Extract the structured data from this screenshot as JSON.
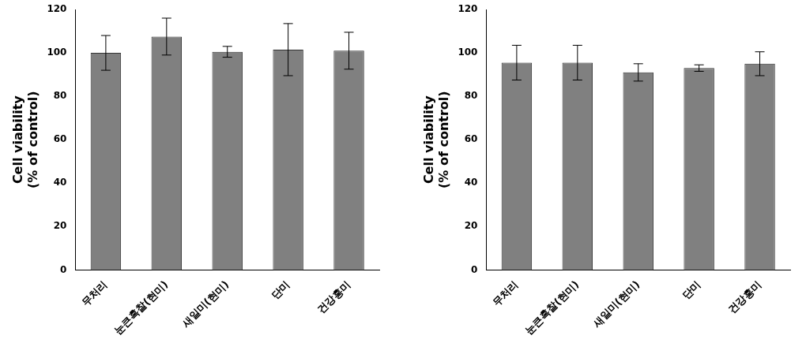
{
  "chart_data": [
    {
      "type": "bar",
      "ylabel": "Cell viability\n(% of control)",
      "categories": [
        "무처리",
        "눈큰흑찰(현미)",
        "새일미(현미)",
        "단미",
        "건강홍미"
      ],
      "values": [
        100,
        107.5,
        100.5,
        101.5,
        101
      ],
      "errors": [
        8,
        8.5,
        2.5,
        12,
        8.5
      ],
      "color": "#808080",
      "ylim": [
        0,
        120
      ],
      "yticks": [
        0,
        20,
        40,
        60,
        80,
        100,
        120
      ],
      "grid": false
    },
    {
      "type": "bar",
      "ylabel": "Cell viability\n(% of control)",
      "categories": [
        "무처리",
        "눈큰흑찰(현미)",
        "새일미(현미)",
        "단미",
        "건강홍미"
      ],
      "values": [
        95.5,
        95.5,
        91,
        93,
        95
      ],
      "errors": [
        8,
        8,
        4,
        1.5,
        5.5
      ],
      "color": "#808080",
      "ylim": [
        0,
        120
      ],
      "yticks": [
        0,
        20,
        40,
        60,
        80,
        100,
        120
      ],
      "grid": false
    }
  ]
}
